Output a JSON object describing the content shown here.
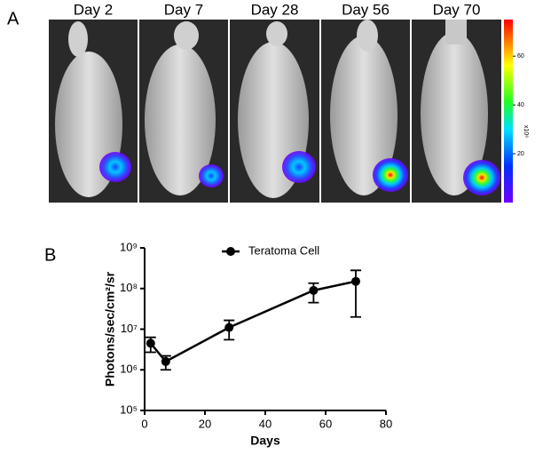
{
  "panel_labels": [
    "A",
    "B"
  ],
  "images": {
    "titles": [
      "Day 2",
      "Day 7",
      "Day 28",
      "Day 56",
      "Day 70"
    ],
    "colorbar": {
      "label": "x10⁶",
      "lim": [
        0,
        75
      ],
      "ticks": [
        20,
        40,
        60
      ]
    }
  },
  "chart_data": {
    "type": "line",
    "xlabel": "Days",
    "ylabel": "Photons/sec/cm²/sr",
    "xlim": [
      0,
      80
    ],
    "xticks": [
      0,
      20,
      40,
      60,
      80
    ],
    "ylim": [
      100000,
      1000000000
    ],
    "log_y": true,
    "yticks": [
      {
        "value": 100000,
        "label": "10⁵"
      },
      {
        "value": 1000000,
        "label": "10⁶"
      },
      {
        "value": 10000000,
        "label": "10⁷"
      },
      {
        "value": 100000000,
        "label": "10⁸"
      },
      {
        "value": 1000000000,
        "label": "10⁹"
      }
    ],
    "legend": "top",
    "series": [
      {
        "name": "Teratoma Cell",
        "color": "#000000",
        "x": [
          2,
          7,
          28,
          56,
          70
        ],
        "values": [
          4500000,
          1600000,
          11000000,
          90000000,
          150000000
        ],
        "errors": [
          1800000,
          600000,
          5500000,
          45000000,
          130000000
        ]
      }
    ]
  }
}
